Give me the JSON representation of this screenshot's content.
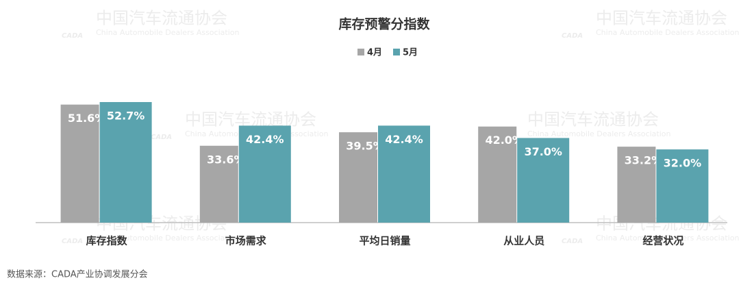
{
  "chart_data": {
    "type": "bar",
    "title": "库存预警分指数",
    "categories": [
      "库存指数",
      "市场需求",
      "平均日销量",
      "从业人员",
      "经营状况"
    ],
    "series": [
      {
        "name": "4月",
        "color": "#a6a6a6",
        "values": [
          51.6,
          33.6,
          39.5,
          42.0,
          33.2
        ],
        "value_labels": [
          "51.6%",
          "33.6%",
          "39.5%",
          "42.0%",
          "33.2%"
        ]
      },
      {
        "name": "5月",
        "color": "#5aa3ae",
        "values": [
          52.7,
          42.4,
          42.4,
          37.0,
          32.0
        ],
        "value_labels": [
          "52.7%",
          "42.4%",
          "42.4%",
          "37.0%",
          "32.0%"
        ]
      }
    ],
    "legend": "top",
    "source": "数据来源：CADA产业协调发展分会",
    "watermark": {
      "title": "中国汽车流通协会",
      "subtitle": "China Automobile Dealers Association",
      "logo": "CADA"
    }
  }
}
